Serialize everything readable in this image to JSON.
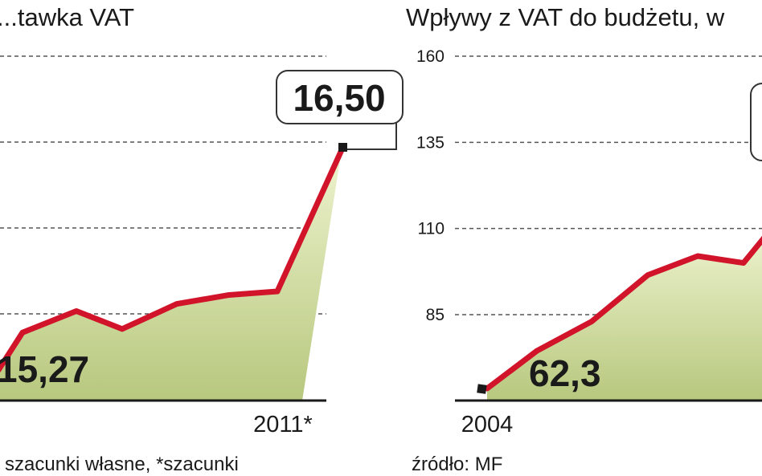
{
  "chart_data": [
    {
      "type": "area",
      "title": "...tawka VAT",
      "x": [
        "",
        "",
        "",
        "",
        "",
        "",
        "",
        "2011*"
      ],
      "values": [
        15.27,
        15.48,
        15.6,
        15.5,
        15.64,
        15.69,
        15.71,
        16.5
      ],
      "ylim": [
        15.1,
        16.8
      ],
      "yticks": [],
      "xtick_labels": [
        "",
        "2011*"
      ],
      "labels": {
        "start": "15,27",
        "end": "16,50"
      },
      "footnote": "szacunki własne, *szacunki",
      "grid": true,
      "colors": {
        "line": "#d1142a",
        "fill_top": "#eef3cf",
        "fill_bottom": "#b7c87e"
      }
    },
    {
      "type": "area",
      "title": "Wpływy z VAT do budżetu, w",
      "x": [
        "2004",
        "",
        "",
        "",
        "",
        "",
        ""
      ],
      "values": [
        62.3,
        74.5,
        83.0,
        96.5,
        102.0,
        100.0,
        110.0
      ],
      "ylim": [
        60,
        160
      ],
      "yticks": [
        160,
        135,
        110,
        85
      ],
      "xtick_labels": [
        "2004"
      ],
      "labels": {
        "start": "62,3"
      },
      "footnote": "źródło: MF",
      "grid": true,
      "colors": {
        "line": "#d1142a",
        "fill_top": "#eef3cf",
        "fill_bottom": "#b7c87e"
      }
    }
  ]
}
